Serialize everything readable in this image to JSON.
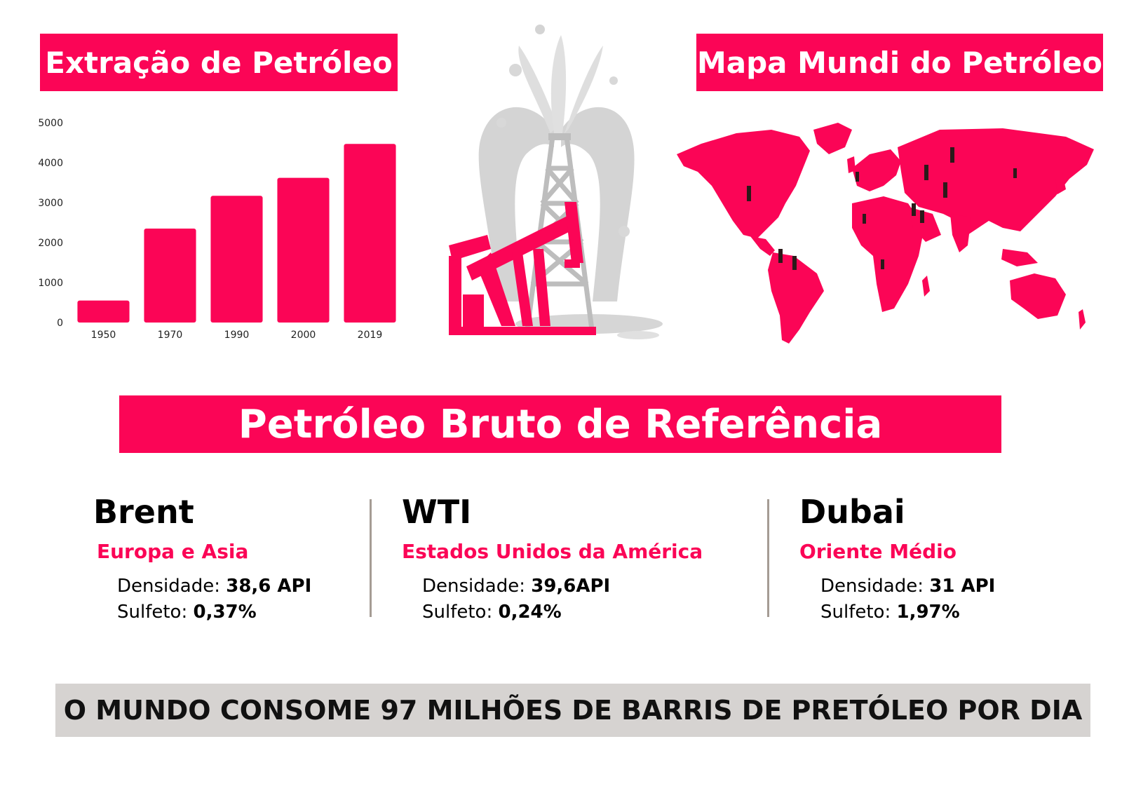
{
  "titles": {
    "left": "Extração de Petróleo",
    "right": "Mapa Mundi do Petróleo",
    "center": "Petróleo Bruto de Referência"
  },
  "colors": {
    "accent": "#fb0556",
    "gray_band": "#d6d3d1",
    "divider": "#a59c94"
  },
  "chart_data": {
    "type": "bar",
    "categories": [
      "1950",
      "1970",
      "1990",
      "2000",
      "2019"
    ],
    "values": [
      550,
      2350,
      3170,
      3620,
      4470
    ],
    "ylim": [
      0,
      5000
    ],
    "yticks": [
      0,
      1000,
      2000,
      3000,
      4000,
      5000
    ],
    "grid": false,
    "color": "#fb0556"
  },
  "illustrations": {
    "oil_rig": "oil-rig-pumpjack-icon",
    "world_map": "world-map-icon"
  },
  "references": [
    {
      "name": "Brent",
      "region": "Europa e Asia",
      "density_label": "Densidade: ",
      "density": "38,6 API",
      "sulfur_label": "Sulfeto: ",
      "sulfur": "0,37%"
    },
    {
      "name": "WTI",
      "region": "Estados Unidos da América",
      "density_label": "Densidade: ",
      "density": "39,6API",
      "sulfur_label": "Sulfeto: ",
      "sulfur": "0,24%"
    },
    {
      "name": "Dubai",
      "region": "Oriente Médio",
      "density_label": "Densidade: ",
      "density": "31 API",
      "sulfur_label": "Sulfeto: ",
      "sulfur": "1,97%"
    }
  ],
  "footer": "O MUNDO CONSOME 97 MILHÕES DE BARRIS DE PRETÓLEO POR DIA"
}
